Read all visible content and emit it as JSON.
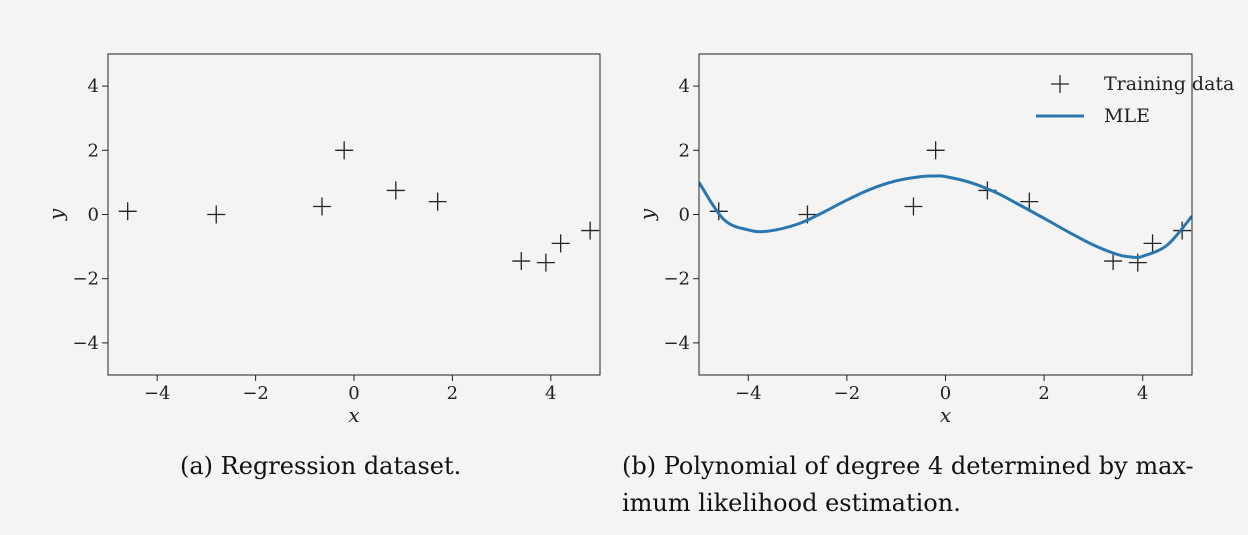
{
  "chart_data": [
    {
      "type": "scatter",
      "caption": "(a) Regression dataset.",
      "xlabel": "x",
      "ylabel": "y",
      "xlim": [
        -5,
        5
      ],
      "ylim": [
        -5,
        5
      ],
      "xticks": [
        -4,
        -2,
        0,
        2,
        4
      ],
      "yticks": [
        -4,
        -2,
        0,
        2,
        4
      ],
      "xtick_labels": [
        "−4",
        "−2",
        "0",
        "2",
        "4"
      ],
      "ytick_labels": [
        "−4",
        "−2",
        "0",
        "2",
        "4"
      ],
      "marker": "plus",
      "grid": false,
      "series": [
        {
          "x": [
            -4.6,
            -2.8,
            -0.65,
            -0.2,
            0.85,
            1.7,
            3.4,
            3.9,
            4.2,
            4.8
          ],
          "y": [
            0.1,
            0.0,
            0.25,
            2.0,
            0.75,
            0.4,
            -1.45,
            -1.5,
            -0.9,
            -0.5
          ]
        }
      ]
    },
    {
      "type": "line",
      "caption": "(b) Polynomial of degree 4 determined by max-imum likelihood estimation.",
      "caption_lines": [
        "(b) Polynomial of degree 4 determined by max-",
        "imum likelihood estimation."
      ],
      "xlabel": "x",
      "ylabel": "y",
      "xlim": [
        -5,
        5
      ],
      "ylim": [
        -5,
        5
      ],
      "xticks": [
        -4,
        -2,
        0,
        2,
        4
      ],
      "yticks": [
        -4,
        -2,
        0,
        2,
        4
      ],
      "xtick_labels": [
        "−4",
        "−2",
        "0",
        "2",
        "4"
      ],
      "ytick_labels": [
        "−4",
        "−2",
        "0",
        "2",
        "4"
      ],
      "grid": false,
      "legend_position": "top-right",
      "series": [
        {
          "name": "Training data",
          "kind": "scatter",
          "marker": "plus",
          "color": "#222222",
          "x": [
            -4.6,
            -2.8,
            -0.65,
            -0.2,
            0.85,
            1.7,
            3.4,
            3.9,
            4.2,
            4.8
          ],
          "y": [
            0.1,
            0.0,
            0.25,
            2.0,
            0.75,
            0.4,
            -1.45,
            -1.5,
            -0.9,
            -0.5
          ]
        },
        {
          "name": "MLE",
          "kind": "line",
          "color": "#2a77b0",
          "x": [
            -5.0,
            -4.5,
            -4.0,
            -3.6,
            -3.0,
            -2.5,
            -2.0,
            -1.5,
            -1.0,
            -0.5,
            -0.2,
            0.0,
            0.5,
            1.0,
            1.5,
            2.0,
            2.5,
            3.0,
            3.5,
            3.8,
            4.0,
            4.5,
            5.0
          ],
          "y": [
            1.0,
            -0.15,
            -0.48,
            -0.52,
            -0.3,
            0.05,
            0.45,
            0.8,
            1.05,
            1.18,
            1.2,
            1.18,
            1.0,
            0.7,
            0.3,
            -0.12,
            -0.55,
            -0.95,
            -1.25,
            -1.33,
            -1.3,
            -0.95,
            -0.05
          ]
        }
      ]
    }
  ]
}
